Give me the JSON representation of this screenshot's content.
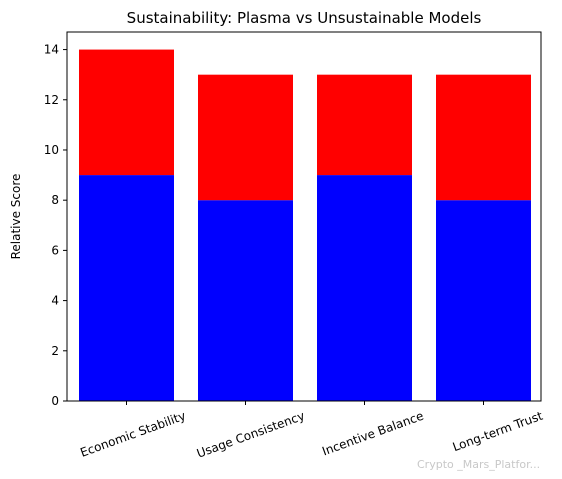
{
  "chart_data": {
    "type": "bar",
    "stacked": true,
    "title": "Sustainability: Plasma vs Unsustainable Models",
    "xlabel": "",
    "ylabel": "Relative Score",
    "categories": [
      "Economic Stability",
      "Usage Consistency",
      "Incentive Balance",
      "Long-term Trust"
    ],
    "series": [
      {
        "values": [
          9,
          8,
          9,
          8
        ],
        "color": "#0000ff"
      },
      {
        "values": [
          5,
          5,
          4,
          5
        ],
        "color": "#ff0000"
      }
    ],
    "ylim": [
      0,
      14.7
    ],
    "yticks": [
      0,
      2,
      4,
      6,
      8,
      10,
      12,
      14
    ],
    "grid": false,
    "legend": "none",
    "xtick_rotation": -20
  },
  "watermark": "Crypto _Mars_Platfor..."
}
